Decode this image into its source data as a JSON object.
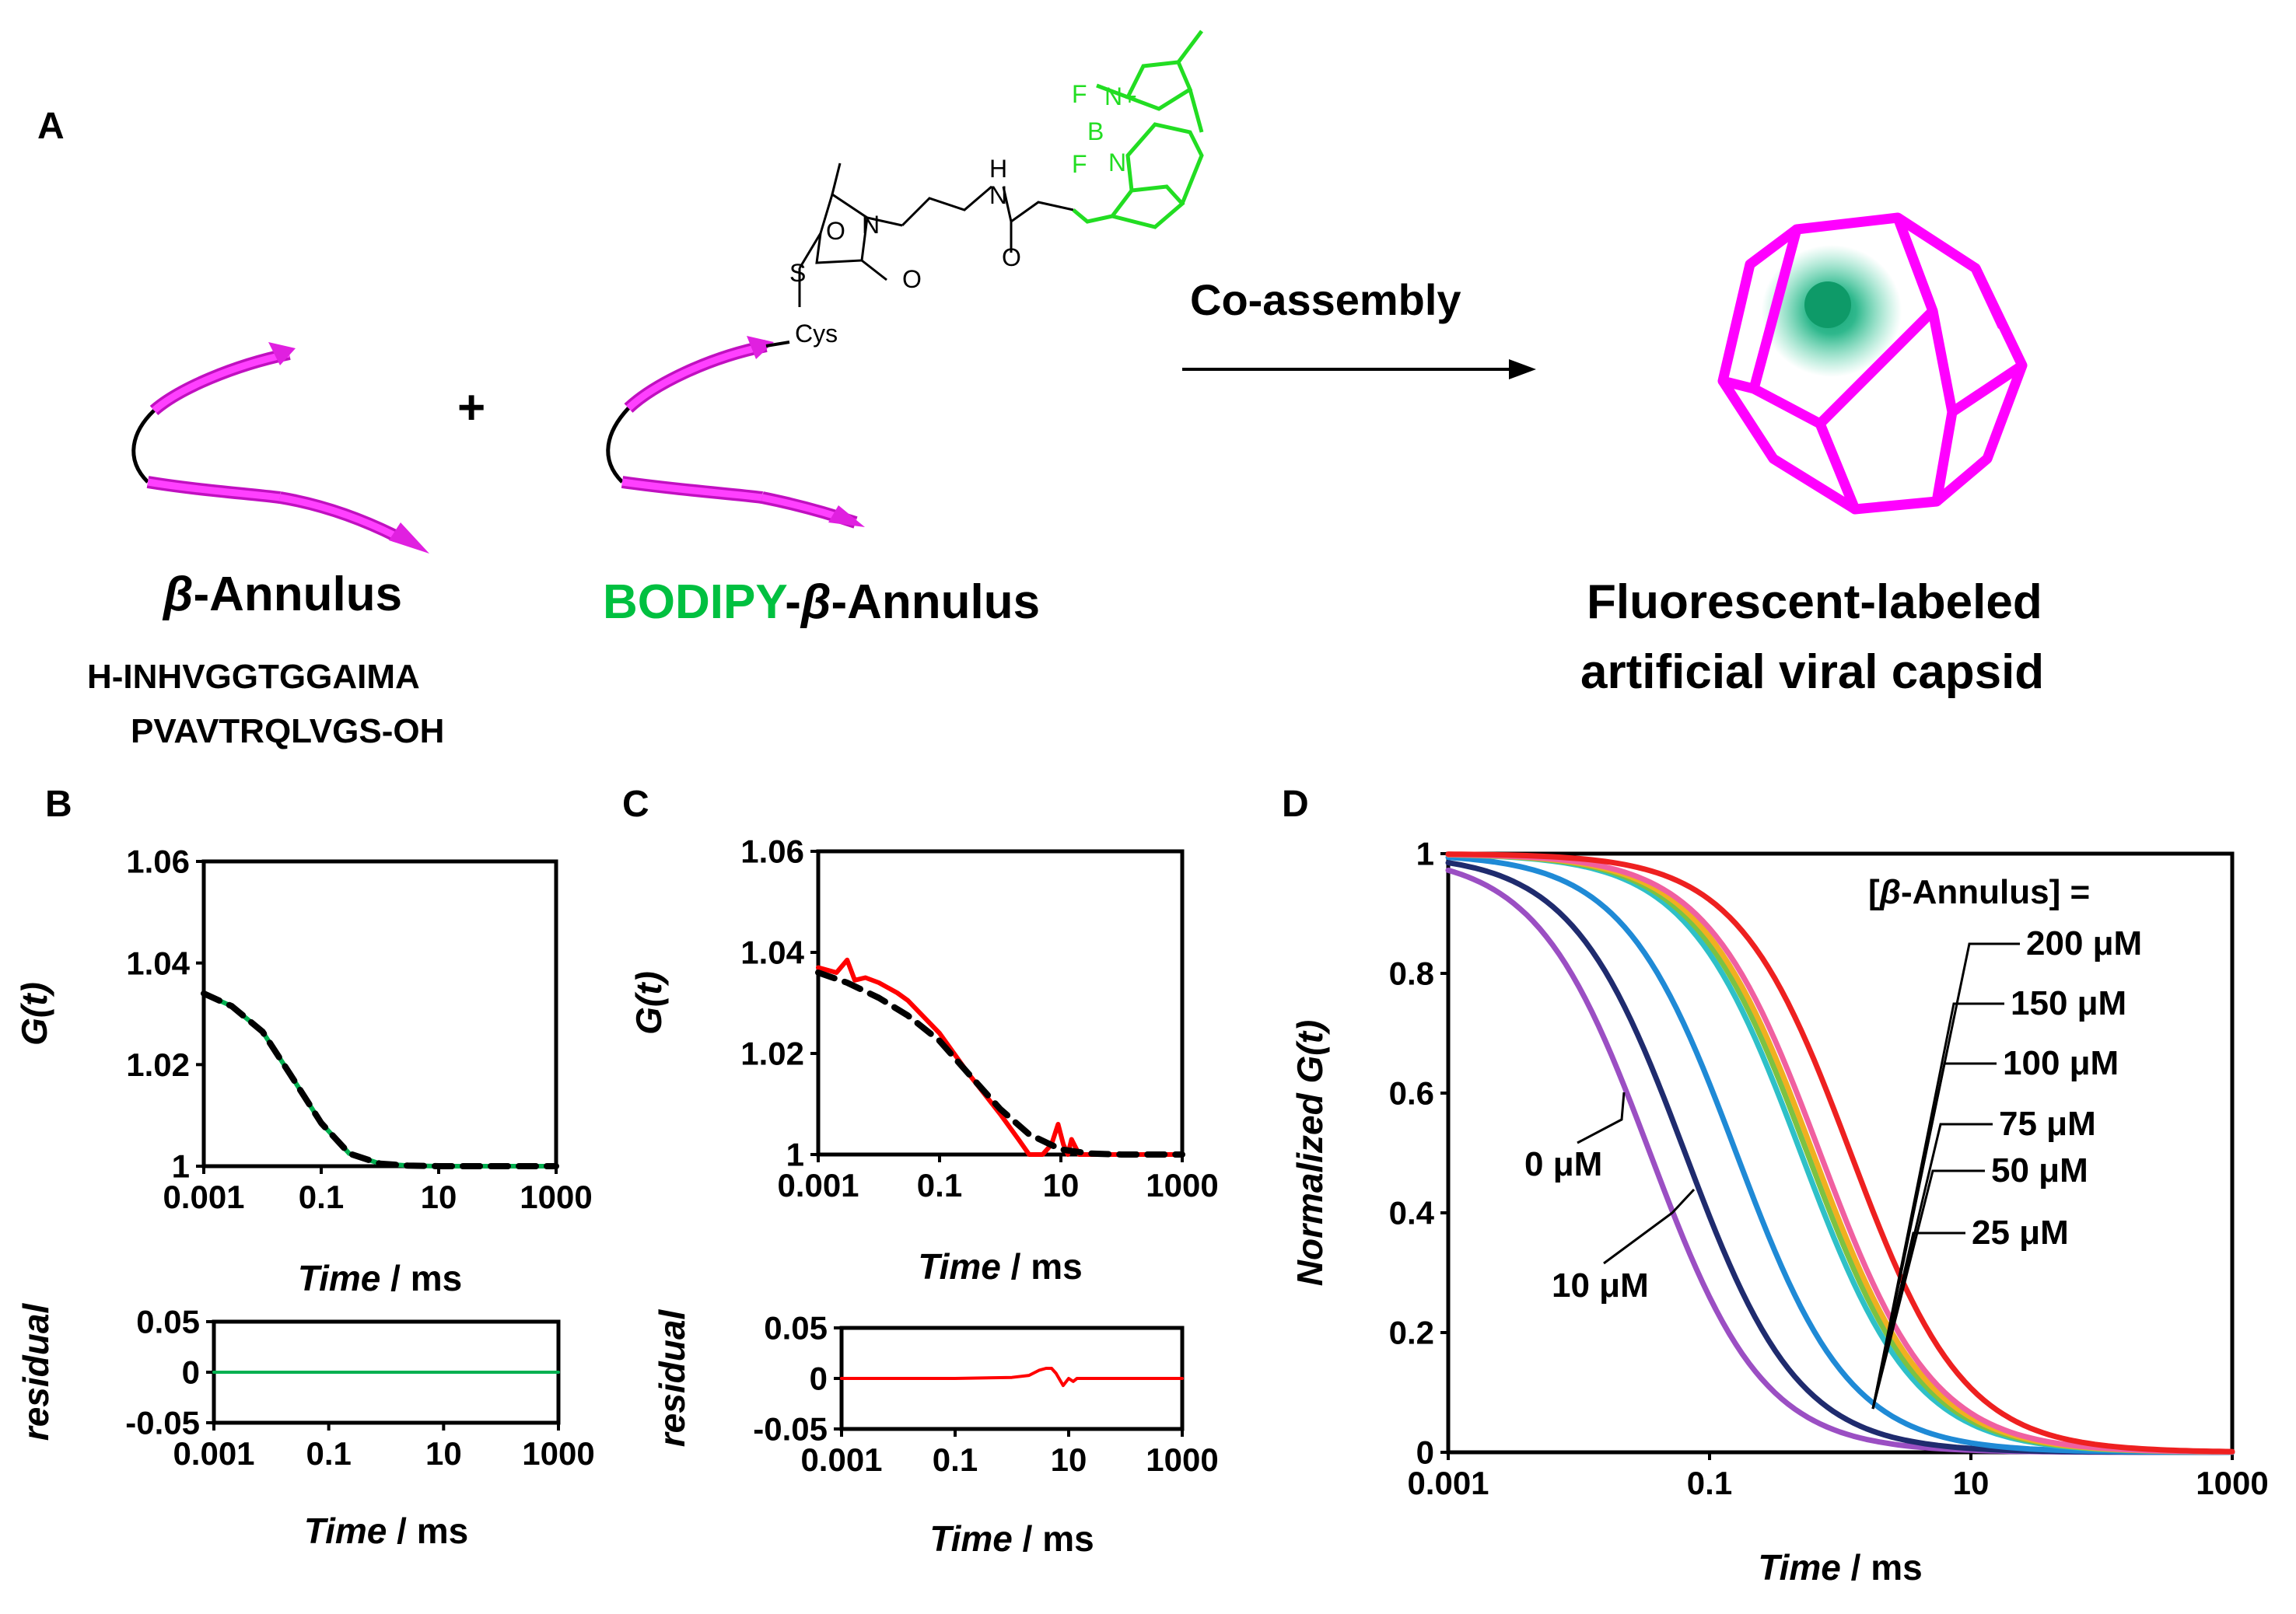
{
  "panel_labels": {
    "a": "A",
    "b": "B",
    "c": "C",
    "d": "D"
  },
  "scheme": {
    "plus": "+",
    "arrow_label": "Co-assembly",
    "left_title_symbol": "β",
    "left_title_rest": "-Annulus",
    "seq_line1": "H-INHVGGTGGAIMA",
    "seq_line2": "PVAVTRQLVGS-OH",
    "mid_title_bodipy": "BODIPY",
    "mid_title_dash": "-",
    "mid_title_symbol": "β",
    "mid_title_rest": "-Annulus",
    "right_title_line1": "Fluorescent-labeled",
    "right_title_line2": "artificial viral capsid",
    "chem_labels": {
      "O1": "O",
      "N1": "N",
      "O2": "O",
      "S": "S",
      "Cys": "Cys",
      "H": "H",
      "N2": "N",
      "O3": "O",
      "F1": "F",
      "Nplus": "N+",
      "B": "B",
      "F2": "F",
      "N3": "N"
    },
    "colors": {
      "strand": "#e020e0",
      "bodipy": "#22dd22",
      "bodipy_text": "#00c040",
      "capsid": "#ff00ff",
      "capsid_dot": "#14a870"
    }
  },
  "chart_data": [
    {
      "id": "B",
      "type": "line",
      "xscale": "log",
      "xlim": [
        0.001,
        1000
      ],
      "ylim": [
        1,
        1.06
      ],
      "xticks": [
        "0.001",
        "0.1",
        "10",
        "1000"
      ],
      "yticks": [
        "1",
        "1.02",
        "1.04",
        "1.06"
      ],
      "xlabel": "Time",
      "xunit": " / ms",
      "ylabel": "G(t)",
      "series": [
        {
          "style": "data",
          "color": "#00b050",
          "x": [
            0.001,
            0.003,
            0.01,
            0.03,
            0.1,
            0.3,
            1,
            3,
            10,
            100,
            1000
          ],
          "y": [
            1.034,
            1.0315,
            1.0265,
            1.018,
            1.0085,
            1.0025,
            1.0005,
            1.0001,
            1.0,
            1.0,
            1.0
          ]
        },
        {
          "style": "fit",
          "color": "#000000",
          "x": [
            0.001,
            0.003,
            0.01,
            0.03,
            0.1,
            0.3,
            1,
            3,
            10,
            100,
            1000
          ],
          "y": [
            1.034,
            1.0315,
            1.0265,
            1.018,
            1.0085,
            1.0025,
            1.0005,
            1.0001,
            1.0,
            1.0,
            1.0
          ]
        }
      ],
      "residual": {
        "ylabel": "residual",
        "ylim": [
          -0.05,
          0.05
        ],
        "yticks": [
          "0.05",
          "0",
          "-0.05"
        ],
        "xticks": [
          "0.001",
          "0.1",
          "10",
          "1000"
        ],
        "xlabel": "Time",
        "xunit": " / ms",
        "color": "#00b050",
        "x": [
          0.001,
          0.01,
          0.1,
          1,
          10,
          100,
          1000
        ],
        "y": [
          0.0,
          0.0,
          0.0,
          0.0,
          0.0,
          0.0,
          0.0
        ]
      }
    },
    {
      "id": "C",
      "type": "line",
      "xscale": "log",
      "xlim": [
        0.001,
        1000
      ],
      "ylim": [
        1,
        1.06
      ],
      "xticks": [
        "0.001",
        "0.1",
        "10",
        "1000"
      ],
      "yticks": [
        "1",
        "1.02",
        "1.04",
        "1.06"
      ],
      "xlabel": "Time",
      "xunit": " / ms",
      "ylabel": "G(t)",
      "series": [
        {
          "style": "data",
          "color": "#ff0000",
          "x": [
            0.001,
            0.002,
            0.003,
            0.004,
            0.006,
            0.01,
            0.02,
            0.03,
            0.1,
            0.3,
            1,
            2,
            3,
            5,
            7,
            9,
            11,
            13,
            15,
            20,
            50,
            100,
            1000
          ],
          "y": [
            1.037,
            1.036,
            1.0385,
            1.0345,
            1.035,
            1.034,
            1.032,
            1.0305,
            1.024,
            1.016,
            1.008,
            1.003,
            1.0,
            1.0,
            1.002,
            1.006,
            1.002,
            1.0,
            1.003,
            1.0,
            1.0,
            1.0,
            1.0
          ]
        },
        {
          "style": "fit",
          "color": "#000000",
          "x": [
            0.001,
            0.003,
            0.01,
            0.03,
            0.1,
            0.3,
            1,
            3,
            10,
            30,
            100,
            1000
          ],
          "y": [
            1.036,
            1.034,
            1.031,
            1.0275,
            1.0225,
            1.016,
            1.009,
            1.004,
            1.001,
            1.0002,
            1.0,
            1.0
          ]
        }
      ],
      "residual": {
        "ylabel": "residual",
        "ylim": [
          -0.05,
          0.05
        ],
        "yticks": [
          "0.05",
          "0",
          "-0.05"
        ],
        "xticks": [
          "0.001",
          "0.1",
          "10",
          "1000"
        ],
        "xlabel": "Time",
        "xunit": " / ms",
        "color": "#ff0000",
        "x": [
          0.001,
          0.1,
          1,
          2,
          3,
          4,
          5,
          6,
          8,
          10,
          12,
          14,
          20,
          100,
          1000
        ],
        "y": [
          0.0,
          0.0,
          0.001,
          0.003,
          0.008,
          0.01,
          0.01,
          0.005,
          -0.007,
          0.0,
          -0.003,
          0.0,
          0.0,
          0.0,
          0.0
        ]
      }
    },
    {
      "id": "D",
      "type": "line",
      "xscale": "log",
      "xlim": [
        0.001,
        1000
      ],
      "ylim": [
        0,
        1
      ],
      "xticks": [
        "0.001",
        "0.1",
        "10",
        "1000"
      ],
      "yticks": [
        "0",
        "0.2",
        "0.4",
        "0.6",
        "0.8",
        "1"
      ],
      "xlabel": "Time",
      "xunit": " / ms",
      "ylabel": "Normalized G(t)",
      "legend_title_pre": "[",
      "legend_title_sym": "β",
      "legend_title_post": "-Annulus] =",
      "series": [
        {
          "name": "0 μM",
          "color": "#9b4fc3",
          "tau": 0.035
        },
        {
          "name": "10 μM",
          "color": "#1f2b6e",
          "tau": 0.065
        },
        {
          "name": "25 μM",
          "color": "#1f8ad6",
          "tau": 0.16
        },
        {
          "name": "50 μM",
          "color": "#2ec0c8",
          "tau": 0.5
        },
        {
          "name": "75 μM",
          "color": "#7cc242",
          "tau": 0.56
        },
        {
          "name": "100 μM",
          "color": "#f0b020",
          "tau": 0.62
        },
        {
          "name": "150 μM",
          "color": "#f060a0",
          "tau": 0.7
        },
        {
          "name": "200 μM",
          "color": "#ee2020",
          "tau": 1.2
        }
      ]
    }
  ]
}
